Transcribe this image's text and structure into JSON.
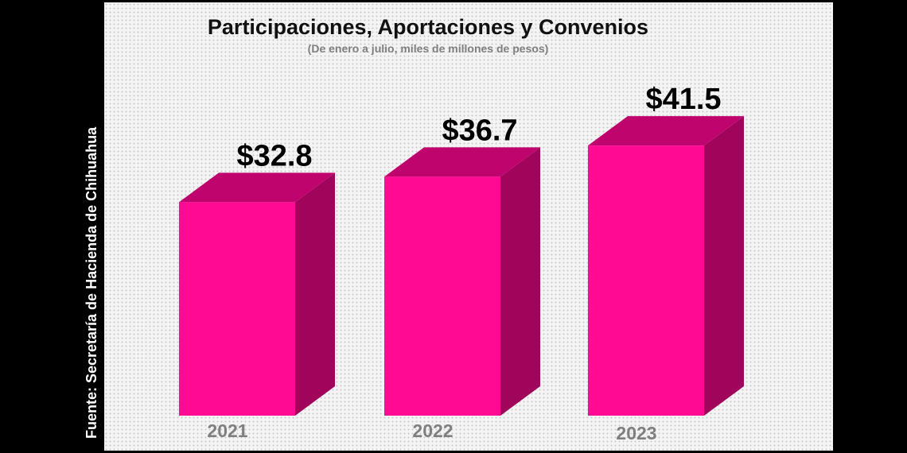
{
  "chart_data": {
    "type": "bar",
    "title": "Participaciones, Aportaciones y Convenios",
    "subtitle": "(De enero a julio, miles de millones de pesos)",
    "categories": [
      "2021",
      "2022",
      "2023"
    ],
    "values": [
      32.8,
      36.7,
      41.5
    ],
    "value_labels": [
      "$32.8",
      "$36.7",
      "$41.5"
    ],
    "source": "Fuente: Secretaría de Hacienda de Chihuahua",
    "bar_3d": true,
    "grid": false,
    "colors": {
      "front": "#ff0a93",
      "top": "#c0046d",
      "side": "#a1045b",
      "category_label": "#7f7f7f",
      "value_label": "#000000"
    }
  }
}
